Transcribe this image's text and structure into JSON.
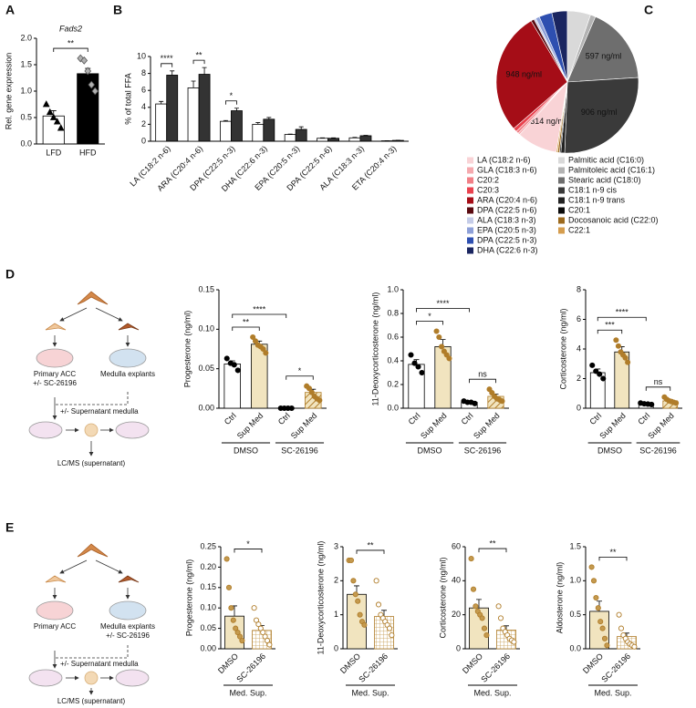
{
  "panels": [
    "A",
    "B",
    "C",
    "D",
    "E"
  ],
  "schematics": {
    "D": [
      "Primary ACC",
      "+/- SC-26196",
      "Medulla explants",
      "+/- Supernatant medulla",
      "LC/MS (supernatant)"
    ],
    "E": [
      "Primary ACC",
      "Medulla explants",
      "+/- SC-26196",
      "+/- Supernatant medulla",
      "LC/MS (supernatant)"
    ]
  },
  "chart_data": [
    {
      "type": "bar",
      "title": "Fads2",
      "ylabel": "Rel. gene expression",
      "categories": [
        "LFD",
        "HFD"
      ],
      "values": [
        0.53,
        1.33
      ],
      "errors": [
        0.1,
        0.1
      ],
      "bar_colors": [
        "#ffffff",
        "#000000"
      ],
      "hatch": [
        false,
        false
      ],
      "points": [
        [
          0.75,
          0.6,
          0.5,
          0.42,
          0.3
        ],
        [
          1.62,
          1.58,
          1.38,
          1.12,
          1.0
        ]
      ],
      "point_shapes": [
        "triangle",
        "diamond"
      ],
      "point_fills": [
        "#000000",
        "#b0b0b0"
      ],
      "point_colors": [
        "#000000",
        "#555555"
      ],
      "ylim": [
        0,
        2
      ],
      "yticks": [
        {
          "value": 0,
          "label": "0.0"
        },
        0.5,
        {
          "value": 1,
          "label": "1.0"
        },
        1.5,
        {
          "value": 2,
          "label": "2.0"
        }
      ],
      "significance": [
        {
          "pair": [
            0,
            1
          ],
          "label": "**"
        }
      ]
    },
    {
      "type": "bar",
      "ylabel": "% of total FFA",
      "categories": [
        "LA (C18:2 n-6)",
        "ARA (C20:4 n-6)",
        "DPA (C22:5 n-3)",
        "DHA (C22:6 n-3)",
        "EPA (C20:5 n-3)",
        "DPA (C22:5 n-6)",
        "ALA (C18:3 n-3)",
        "ETA (C20:4 n-3)"
      ],
      "series": [
        {
          "color": "#ffffff",
          "values": [
            4.4,
            6.3,
            2.35,
            2.0,
            0.8,
            0.35,
            0.4,
            0.05
          ],
          "errors": [
            0.3,
            0.8,
            0.1,
            0.2,
            0.05,
            0.05,
            0.05,
            0.02
          ]
        },
        {
          "color": "#333333",
          "values": [
            7.8,
            7.9,
            3.6,
            2.6,
            1.4,
            0.35,
            0.65,
            0.1
          ],
          "errors": [
            0.5,
            0.8,
            0.3,
            0.2,
            0.3,
            0.05,
            0.05,
            0.02
          ]
        }
      ],
      "ylim": [
        0,
        10
      ],
      "yticks": [
        0,
        2,
        4,
        6,
        8,
        10
      ],
      "significance": [
        {
          "category": 0,
          "label": "****"
        },
        {
          "category": 1,
          "label": "**"
        },
        {
          "category": 2,
          "label": "*"
        }
      ]
    },
    {
      "type": "pie",
      "categories": [
        "LA (C18:2 n-6)",
        "GLA (C18:3 n-6)",
        "C20:2",
        "C20:3",
        "ARA (C20:4 n-6)",
        "DPA (C22:5 n-6)",
        "ALA (C18:3 n-3)",
        "EPA (C20:5 n-3)",
        "DPA (C22:5 n-3)",
        "DHA (C22:6 n-3)",
        "Palmitic acid (C16:0)",
        "Palmitoleic acid (C16:1)",
        "Stearic acid (C18:0)",
        "C18:1 n-9 cis",
        "C18:1 n-9 trans",
        "C20:1",
        "Docosanoic acid (C22:0)",
        "C22:1"
      ],
      "values": [
        314,
        15,
        20,
        30,
        948,
        25,
        15,
        30,
        100,
        120,
        180,
        40,
        597,
        906,
        30,
        10,
        15,
        10
      ],
      "value_labels": [
        "314 ng/ml",
        null,
        null,
        null,
        "948 ng/ml",
        null,
        null,
        null,
        null,
        null,
        null,
        null,
        "597 ng/ml",
        "906 ng/ml",
        null,
        null,
        null,
        null
      ],
      "colors": [
        "#f9d3d6",
        "#f5a9ae",
        "#f17f86",
        "#e9424e",
        "#a50d17",
        "#5a0a10",
        "#c5cce8",
        "#8ea0d8",
        "#2e4fb0",
        "#1a2560",
        "#d9d9d9",
        "#b3b3b3",
        "#6e6e6e",
        "#3a3a3a",
        "#222222",
        "#0a0a0a",
        "#9c6a1e",
        "#d59d4e"
      ]
    },
    {
      "type": "bar",
      "ylabel": "Progesterone (ng/ml)",
      "categories": [
        "Ctrl",
        "Sup Med",
        "Ctrl",
        "Sup Med"
      ],
      "values": [
        0.056,
        0.081,
        0.0,
        0.02
      ],
      "errors": [
        0.004,
        0.004,
        0.0,
        0.004
      ],
      "bar_colors": [
        "#ffffff",
        "#f1e4bf",
        "#ffffff",
        "#f1e4bf"
      ],
      "hatch": [
        false,
        false,
        false,
        true
      ],
      "hatch_style": "diagonal",
      "points": [
        [
          0.063,
          0.057,
          0.055,
          0.048
        ],
        [
          0.09,
          0.085,
          0.08,
          0.078,
          0.075,
          0.07
        ],
        [
          0,
          0,
          0,
          0
        ],
        [
          0.028,
          0.025,
          0.02,
          0.015,
          0.012,
          0.01
        ]
      ],
      "point_fills": [
        "#000000",
        "#b07d2a",
        "#000000",
        "#b07d2a"
      ],
      "point_colors": [
        "#000000",
        "#b07d2a",
        "#000000",
        "#b07d2a"
      ],
      "ylim": [
        0,
        0.15
      ],
      "yticks": [
        {
          "value": 0,
          "label": "0.00"
        },
        0.05,
        {
          "value": 0.1,
          "label": "0.10"
        },
        0.15
      ],
      "significance": [
        {
          "pair": [
            0,
            1
          ],
          "label": "**"
        },
        {
          "pair": [
            0,
            2
          ],
          "label": "****"
        },
        {
          "pair": [
            2,
            3
          ],
          "label": "*"
        }
      ],
      "groups": [
        {
          "label": "DMSO",
          "from": 0,
          "to": 1
        },
        {
          "label": "SC-26196",
          "from": 2,
          "to": 3
        }
      ]
    },
    {
      "type": "bar",
      "ylabel": "11-Deoxycorticosterone (ng/ml)",
      "categories": [
        "Ctrl",
        "Sup Med",
        "Ctrl",
        "Sup Med"
      ],
      "values": [
        0.37,
        0.52,
        0.05,
        0.1
      ],
      "errors": [
        0.04,
        0.06,
        0.005,
        0.02
      ],
      "bar_colors": [
        "#ffffff",
        "#f1e4bf",
        "#ffffff",
        "#f1e4bf"
      ],
      "hatch": [
        false,
        false,
        false,
        true
      ],
      "hatch_style": "diagonal",
      "points": [
        [
          0.45,
          0.38,
          0.35,
          0.3
        ],
        [
          0.65,
          0.6,
          0.52,
          0.48,
          0.45,
          0.42
        ],
        [
          0.06,
          0.05,
          0.05,
          0.04
        ],
        [
          0.16,
          0.13,
          0.1,
          0.08,
          0.07,
          0.06
        ]
      ],
      "point_fills": [
        "#000000",
        "#b07d2a",
        "#000000",
        "#b07d2a"
      ],
      "point_colors": [
        "#000000",
        "#b07d2a",
        "#000000",
        "#b07d2a"
      ],
      "ylim": [
        0,
        1
      ],
      "yticks": [
        {
          "value": 0,
          "label": "0.0"
        },
        0.2,
        0.4,
        0.6,
        0.8,
        {
          "value": 1,
          "label": "1.0"
        }
      ],
      "significance": [
        {
          "pair": [
            0,
            1
          ],
          "label": "*"
        },
        {
          "pair": [
            0,
            2
          ],
          "label": "****"
        },
        {
          "pair": [
            2,
            3
          ],
          "label": "ns"
        }
      ],
      "groups": [
        {
          "label": "DMSO",
          "from": 0,
          "to": 1
        },
        {
          "label": "SC-26196",
          "from": 2,
          "to": 3
        }
      ]
    },
    {
      "type": "bar",
      "ylabel": "Corticosterone (ng/ml)",
      "categories": [
        "Ctrl",
        "Sup Med",
        "Ctrl",
        "Sup Med"
      ],
      "values": [
        2.4,
        3.8,
        0.3,
        0.5
      ],
      "errors": [
        0.25,
        0.35,
        0.05,
        0.08
      ],
      "bar_colors": [
        "#ffffff",
        "#f1e4bf",
        "#ffffff",
        "#f1e4bf"
      ],
      "hatch": [
        false,
        false,
        false,
        true
      ],
      "hatch_style": "diagonal",
      "points": [
        [
          2.9,
          2.5,
          2.3,
          2.0
        ],
        [
          4.6,
          4.2,
          3.8,
          3.6,
          3.4,
          3.1
        ],
        [
          0.35,
          0.3,
          0.28,
          0.25
        ],
        [
          0.75,
          0.6,
          0.5,
          0.45,
          0.4,
          0.35
        ]
      ],
      "point_fills": [
        "#000000",
        "#b07d2a",
        "#000000",
        "#b07d2a"
      ],
      "point_colors": [
        "#000000",
        "#b07d2a",
        "#000000",
        "#b07d2a"
      ],
      "ylim": [
        0,
        8
      ],
      "yticks": [
        0,
        2,
        4,
        6,
        8
      ],
      "significance": [
        {
          "pair": [
            0,
            1
          ],
          "label": "***"
        },
        {
          "pair": [
            0,
            2
          ],
          "label": "****"
        },
        {
          "pair": [
            2,
            3
          ],
          "label": "ns"
        }
      ],
      "groups": [
        {
          "label": "DMSO",
          "from": 0,
          "to": 1
        },
        {
          "label": "SC-26196",
          "from": 2,
          "to": 3
        }
      ]
    },
    {
      "type": "bar",
      "ylabel": "Progesterone (ng/ml)",
      "categories": [
        "DMSO",
        "SC-26196"
      ],
      "values": [
        0.08,
        0.045
      ],
      "errors": [
        0.025,
        0.012
      ],
      "bar_colors": [
        "#f1e4bf",
        "#ffffff"
      ],
      "hatch": [
        false,
        true
      ],
      "hatch_style": "grid",
      "points": [
        [
          0.22,
          0.15,
          0.1,
          0.07,
          0.05,
          0.04,
          0.03,
          0.02
        ],
        [
          0.1,
          0.07,
          0.06,
          0.05,
          0.04,
          0.03,
          0.02,
          0.01
        ]
      ],
      "point_fills": [
        "#c49a4f",
        "#ffffff"
      ],
      "point_colors": [
        "#b07d2a",
        "#b07d2a"
      ],
      "ylim": [
        0,
        0.25
      ],
      "yticks": [
        {
          "value": 0,
          "label": "0.00"
        },
        0.05,
        {
          "value": 0.1,
          "label": "0.10"
        },
        0.15,
        {
          "value": 0.2,
          "label": "0.20"
        },
        0.25
      ],
      "significance": [
        {
          "pair": [
            0,
            1
          ],
          "label": "*"
        }
      ],
      "groups": [
        {
          "label": "Med. Sup.",
          "from": 0,
          "to": 1
        }
      ]
    },
    {
      "type": "bar",
      "ylabel": "11-Deoxycorticosterone (ng/ml)",
      "categories": [
        "DMSO",
        "SC-26196"
      ],
      "values": [
        1.6,
        0.95
      ],
      "errors": [
        0.25,
        0.18
      ],
      "bar_colors": [
        "#f1e4bf",
        "#ffffff"
      ],
      "hatch": [
        false,
        true
      ],
      "hatch_style": "grid",
      "points": [
        [
          2.6,
          2.6,
          2.0,
          1.6,
          1.4,
          1.0,
          0.8,
          0.7
        ],
        [
          2.0,
          1.3,
          1.0,
          0.9,
          0.8,
          0.7,
          0.6,
          0.4
        ]
      ],
      "point_fills": [
        "#c49a4f",
        "#ffffff"
      ],
      "point_colors": [
        "#b07d2a",
        "#b07d2a"
      ],
      "ylim": [
        0,
        3
      ],
      "yticks": [
        0,
        1,
        2,
        3
      ],
      "significance": [
        {
          "pair": [
            0,
            1
          ],
          "label": "**"
        }
      ],
      "groups": [
        {
          "label": "Med. Sup.",
          "from": 0,
          "to": 1
        }
      ]
    },
    {
      "type": "bar",
      "ylabel": "Corticosterone (ng/ml)",
      "categories": [
        "DMSO",
        "SC-26196"
      ],
      "values": [
        24,
        11
      ],
      "errors": [
        5,
        2.5
      ],
      "bar_colors": [
        "#f1e4bf",
        "#ffffff"
      ],
      "hatch": [
        false,
        true
      ],
      "hatch_style": "grid",
      "points": [
        [
          53,
          35,
          25,
          22,
          20,
          18,
          12,
          8
        ],
        [
          25,
          18,
          12,
          10,
          8,
          6,
          5,
          4
        ]
      ],
      "point_fills": [
        "#c49a4f",
        "#ffffff"
      ],
      "point_colors": [
        "#b07d2a",
        "#b07d2a"
      ],
      "ylim": [
        0,
        60
      ],
      "yticks": [
        0,
        20,
        40,
        60
      ],
      "significance": [
        {
          "pair": [
            0,
            1
          ],
          "label": "**"
        }
      ],
      "groups": [
        {
          "label": "Med. Sup.",
          "from": 0,
          "to": 1
        }
      ]
    },
    {
      "type": "bar",
      "ylabel": "Aldosterone (ng/ml)",
      "categories": [
        "DMSO",
        "SC-26196"
      ],
      "values": [
        0.55,
        0.18
      ],
      "errors": [
        0.15,
        0.05
      ],
      "bar_colors": [
        "#f1e4bf",
        "#ffffff"
      ],
      "hatch": [
        false,
        true
      ],
      "hatch_style": "grid",
      "points": [
        [
          1.2,
          1.0,
          0.75,
          0.6,
          0.4,
          0.3,
          0.15,
          0.05
        ],
        [
          0.5,
          0.3,
          0.2,
          0.15,
          0.1,
          0.07,
          0.05,
          0.03
        ]
      ],
      "point_fills": [
        "#c49a4f",
        "#ffffff"
      ],
      "point_colors": [
        "#b07d2a",
        "#b07d2a"
      ],
      "ylim": [
        0,
        1.5
      ],
      "yticks": [
        {
          "value": 0,
          "label": "0.0"
        },
        0.5,
        {
          "value": 1,
          "label": "1.0"
        },
        1.5
      ],
      "significance": [
        {
          "pair": [
            0,
            1
          ],
          "label": "**"
        }
      ],
      "groups": [
        {
          "label": "Med. Sup.",
          "from": 0,
          "to": 1
        }
      ]
    }
  ]
}
